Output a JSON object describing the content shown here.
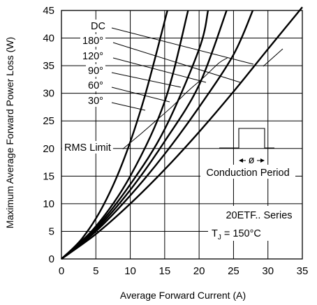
{
  "chart_data": {
    "type": "line",
    "xlabel": "Average Forward Current (A)",
    "ylabel": "Maximum Average Forward Power Loss (W)",
    "xlim": [
      0,
      35
    ],
    "ylim": [
      0,
      45
    ],
    "x_ticks": [
      0,
      5,
      10,
      15,
      20,
      25,
      30,
      35
    ],
    "y_ticks": [
      0,
      5,
      10,
      15,
      20,
      25,
      30,
      35,
      40,
      45
    ],
    "grid": true,
    "series": [
      {
        "name": "DC",
        "x": [
          0,
          5,
          10,
          15,
          20,
          25,
          30,
          35
        ],
        "y": [
          0,
          4.5,
          10,
          16.2,
          23,
          30.3,
          38,
          45.6
        ]
      },
      {
        "name": "180°",
        "x": [
          0,
          5,
          10,
          15,
          20,
          25,
          27.8
        ],
        "y": [
          0,
          5,
          11.5,
          19,
          27.5,
          37,
          45
        ]
      },
      {
        "name": "120°",
        "x": [
          0,
          5,
          10,
          15,
          20,
          24
        ],
        "y": [
          0,
          5.3,
          12.5,
          21.3,
          31.5,
          45
        ]
      },
      {
        "name": "90°",
        "x": [
          0,
          5,
          10,
          15,
          20,
          21.3
        ],
        "y": [
          0,
          5.6,
          13.5,
          23.5,
          38,
          45
        ]
      },
      {
        "name": "60°",
        "x": [
          0,
          5,
          10,
          15,
          18.4
        ],
        "y": [
          0,
          5.9,
          15,
          28.5,
          45
        ]
      },
      {
        "name": "30°",
        "x": [
          0,
          3,
          6,
          9,
          12,
          15.4
        ],
        "y": [
          0,
          3.7,
          9.5,
          17.8,
          29,
          45
        ]
      }
    ],
    "rms_limit": {
      "label": "RMS Limit",
      "x": [
        8.9,
        11.3,
        13.7,
        16.0,
        18.3,
        20.6,
        22.9,
        24.1
      ],
      "y": [
        19.9,
        22.4,
        25.0,
        27.5,
        30.3,
        32.8,
        35.5,
        36.4
      ]
    },
    "annotations": {
      "series_title": "20ETF.. Series",
      "tj_prefix": "T",
      "tj_sub": "J",
      "tj_value": " = 150°C",
      "conduction_period": "Conduction Period",
      "conduction_symbol": "ø"
    }
  }
}
